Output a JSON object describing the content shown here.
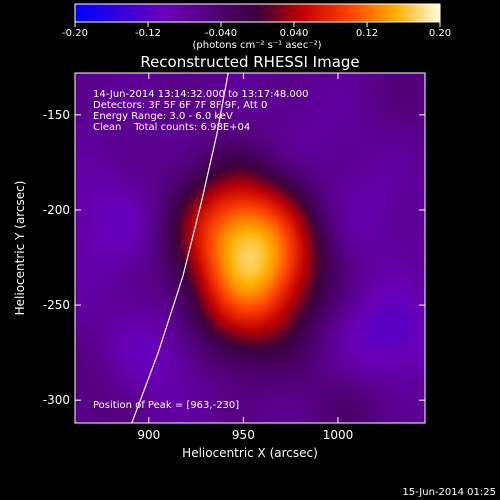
{
  "title": "Reconstructed RHESSI Image",
  "footer_timestamp": "15-Jun-2014 01:25",
  "colorbar": {
    "ticks": [
      "-0.20",
      "-0.12",
      "-0.040",
      "0.040",
      "0.12",
      "0.20"
    ],
    "unit_label": "(photons cm⁻² s⁻¹ asec⁻²)",
    "range": [
      -0.2,
      0.2
    ]
  },
  "info": {
    "time_range": "14-Jun-2014 13:14:32.000 to 13:17:48.000",
    "detectors": "Detectors: 3F 5F 6F 7F 8F 9F, Att 0",
    "energy": "Energy Range: 3.0 - 6.0 keV",
    "clean": "Clean    Total counts: 6.98E+04",
    "peak": "Position of Peak = [963,-230]"
  },
  "chart_data": {
    "type": "heatmap",
    "title": "Reconstructed RHESSI Image",
    "xlabel": "Heliocentric X (arcsec)",
    "ylabel": "Heliocentric Y (arcsec)",
    "xlim": [
      861,
      1046
    ],
    "ylim": [
      -312,
      -128
    ],
    "x_ticks": [
      900,
      950,
      1000
    ],
    "y_ticks": [
      -150,
      -200,
      -250,
      -300
    ],
    "peak": [
      963,
      -230
    ],
    "colormap": "blue-purple-red-yellow-white",
    "sources": [
      {
        "x": 957,
        "y": -225,
        "amplitude": 0.21
      },
      {
        "x": 937,
        "y": -205,
        "amplitude": 0.06
      },
      {
        "x": 945,
        "y": -258,
        "amplitude": 0.04
      },
      {
        "x": 905,
        "y": -275,
        "amplitude": -0.04
      },
      {
        "x": 1025,
        "y": -268,
        "amplitude": -0.055
      },
      {
        "x": 880,
        "y": -207,
        "amplitude": -0.035
      },
      {
        "x": 1010,
        "y": -205,
        "amplitude": -0.025
      },
      {
        "x": 985,
        "y": -165,
        "amplitude": -0.015
      },
      {
        "x": 1010,
        "y": -300,
        "amplitude": 0.03
      },
      {
        "x": 870,
        "y": -300,
        "amplitude": 0.02
      },
      {
        "x": 1040,
        "y": -135,
        "amplitude": 0.015
      }
    ],
    "limb_curve": [
      {
        "x": 891,
        "y": -312
      },
      {
        "x": 905,
        "y": -275
      },
      {
        "x": 918,
        "y": -235
      },
      {
        "x": 928,
        "y": -195
      },
      {
        "x": 936,
        "y": -160
      },
      {
        "x": 942,
        "y": -128
      }
    ]
  }
}
